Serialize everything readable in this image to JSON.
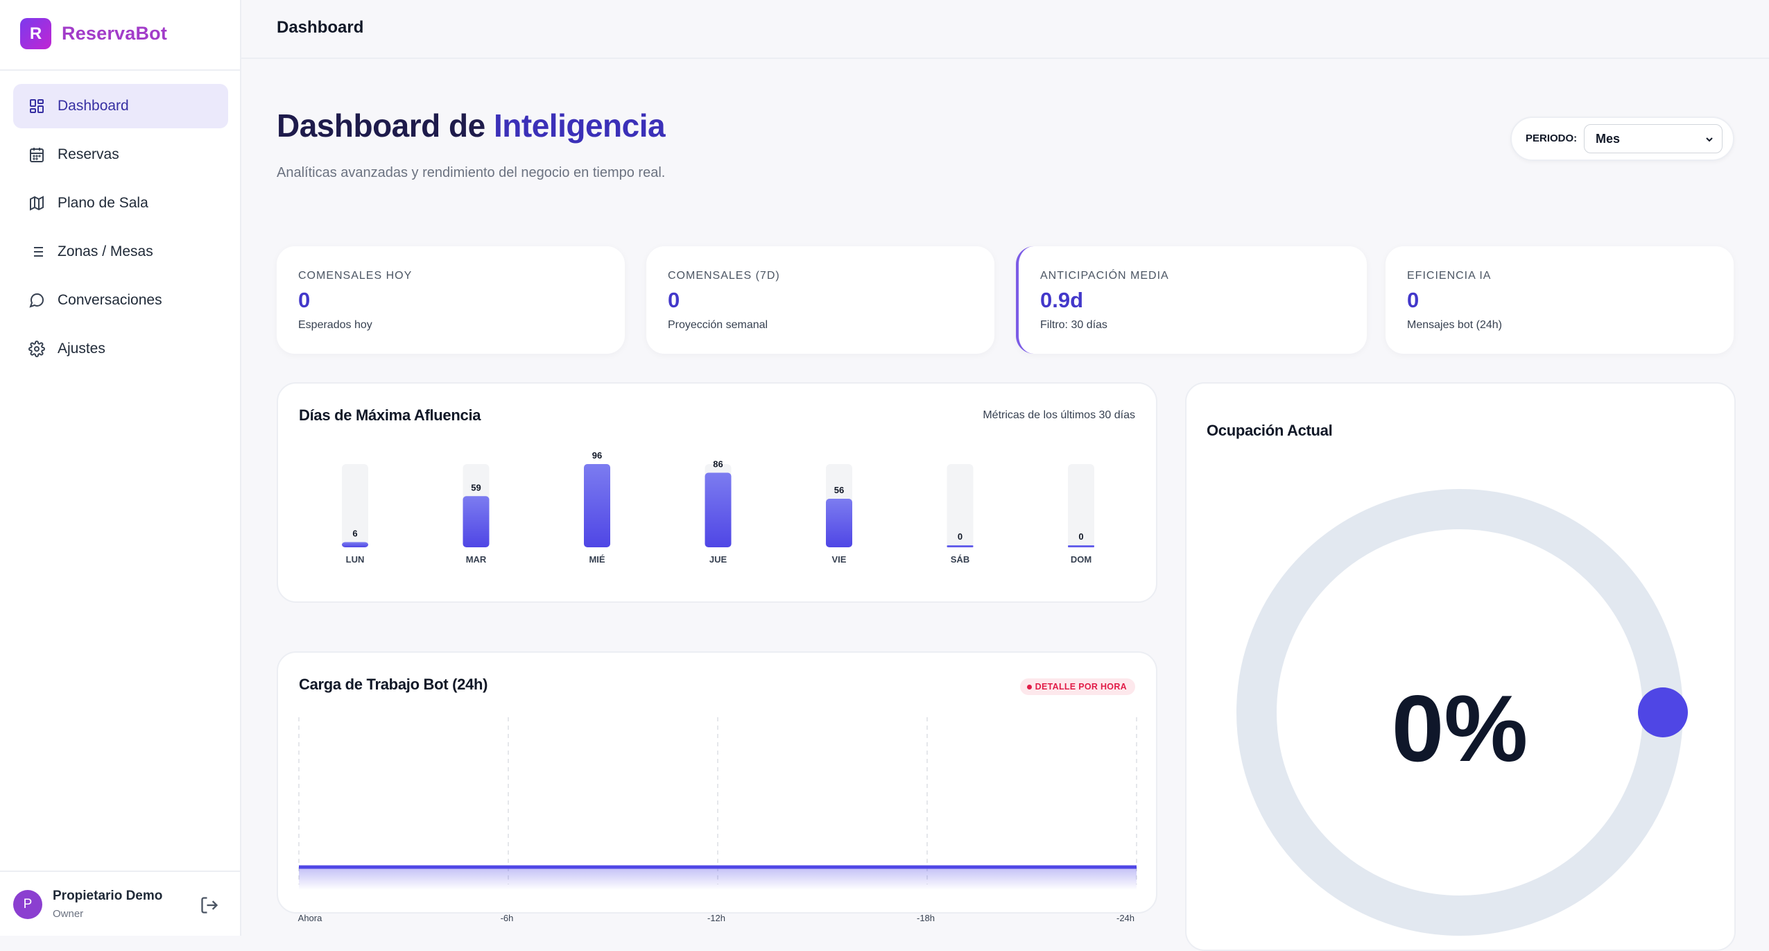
{
  "brand": {
    "logo_letter": "R",
    "name": "ReservaBot"
  },
  "sidebar": {
    "items": [
      {
        "label": "Dashboard",
        "icon": "dashboard-icon",
        "active": true
      },
      {
        "label": "Reservas",
        "icon": "calendar-icon",
        "active": false
      },
      {
        "label": "Plano de Sala",
        "icon": "map-icon",
        "active": false
      },
      {
        "label": "Zonas / Mesas",
        "icon": "list-icon",
        "active": false
      },
      {
        "label": "Conversaciones",
        "icon": "chat-bubble-icon",
        "active": false
      },
      {
        "label": "Ajustes",
        "icon": "gear-icon",
        "active": false
      }
    ],
    "user": {
      "initial": "P",
      "name": "Propietario Demo",
      "role": "Owner"
    }
  },
  "header": {
    "title": "Dashboard"
  },
  "page": {
    "title_part1": "Dashboard de",
    "title_part2": "Inteligencia",
    "subtitle": "Analíticas avanzadas y rendimiento del negocio en tiempo real."
  },
  "period": {
    "label": "PERIODO:",
    "selected": "Mes"
  },
  "stats": [
    {
      "label": "COMENSALES HOY",
      "value": "0",
      "sub": "Esperados hoy"
    },
    {
      "label": "COMENSALES (7D)",
      "value": "0",
      "sub": "Proyección semanal"
    },
    {
      "label": "ANTICIPACIÓN MEDIA",
      "value": "0.9d",
      "sub": "Filtro: 30 días"
    },
    {
      "label": "EFICIENCIA IA",
      "value": "0",
      "sub": "Mensajes bot (24h)"
    }
  ],
  "peak_days": {
    "title": "Días de Máxima Afluencia",
    "note": "Métricas de los últimos 30 días"
  },
  "workload": {
    "title": "Carga de Trabajo Bot (24h)",
    "badge": "DETALLE POR HORA"
  },
  "occupancy": {
    "title": "Ocupación Actual",
    "value": "0%"
  },
  "colors": {
    "accent": "#4f46e5",
    "brand": "#a23cc9",
    "danger": "#e11d48",
    "track": "#e2e8f0"
  },
  "chart_data": [
    {
      "type": "bar",
      "title": "Días de Máxima Afluencia",
      "categories": [
        "LUN",
        "MAR",
        "MIÉ",
        "JUE",
        "VIE",
        "SÁB",
        "DOM"
      ],
      "values": [
        6,
        59,
        96,
        86,
        56,
        0,
        0
      ],
      "ylim": [
        0,
        96
      ]
    },
    {
      "type": "area",
      "title": "Carga de Trabajo Bot (24h)",
      "x": [
        "Ahora",
        "-6h",
        "-12h",
        "-18h",
        "-24h"
      ],
      "values": [
        0,
        0,
        0,
        0,
        0
      ]
    }
  ]
}
